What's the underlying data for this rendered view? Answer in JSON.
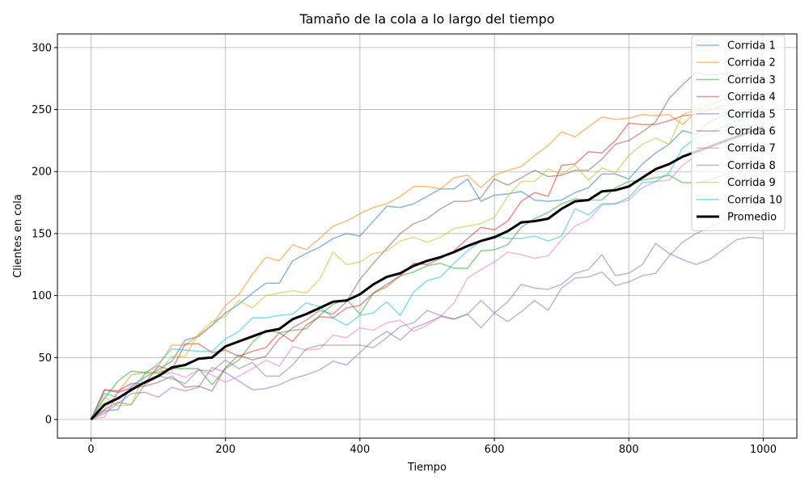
{
  "chart_data": {
    "type": "line",
    "title": "Tamaño de la cola a lo largo del tiempo",
    "xlabel": "Tiempo",
    "ylabel": "Clientes en cola",
    "xlim": [
      -50,
      1050
    ],
    "ylim": [
      -15,
      311
    ],
    "x_ticks": [
      0,
      200,
      400,
      600,
      800,
      1000
    ],
    "x_tick_labels": [
      "0",
      "200",
      "400",
      "600",
      "800",
      "1000"
    ],
    "y_ticks": [
      0,
      50,
      100,
      150,
      200,
      250,
      300
    ],
    "y_tick_labels": [
      "0",
      "50",
      "100",
      "150",
      "200",
      "250",
      "300"
    ],
    "grid": true,
    "legend_position": "top-right",
    "x": [
      0,
      20,
      40,
      60,
      80,
      100,
      120,
      140,
      160,
      180,
      200,
      220,
      240,
      260,
      280,
      300,
      320,
      340,
      360,
      380,
      400,
      420,
      440,
      460,
      480,
      500,
      520,
      540,
      560,
      580,
      600,
      620,
      640,
      660,
      680,
      700,
      720,
      740,
      760,
      780,
      800,
      820,
      840,
      860,
      880,
      900,
      920,
      940,
      960,
      980,
      1000
    ],
    "series": [
      {
        "name": "Corrida 1",
        "color": "#1f77b4",
        "values": [
          0,
          7,
          8,
          27,
          34,
          40,
          47,
          64,
          67,
          76,
          86,
          93,
          102,
          110,
          110,
          128,
          134,
          139,
          146,
          150,
          148,
          160,
          172,
          171,
          174,
          180,
          186,
          186,
          194,
          176,
          181,
          182,
          184,
          177,
          176,
          177,
          183,
          187,
          198,
          198,
          194,
          206,
          215,
          222,
          233,
          230,
          240,
          245,
          248,
          250,
          252
        ]
      },
      {
        "name": "Corrida 2",
        "color": "#ff7f0e",
        "values": [
          0,
          8,
          22,
          36,
          38,
          43,
          60,
          60,
          68,
          76,
          92,
          101,
          117,
          131,
          128,
          141,
          137,
          146,
          156,
          160,
          166,
          171,
          174,
          180,
          188,
          188,
          186,
          195,
          197,
          187,
          197,
          201,
          204,
          213,
          221,
          232,
          228,
          236,
          244,
          242,
          243,
          246,
          245,
          246,
          238,
          248,
          253,
          258,
          262,
          266,
          270
        ]
      },
      {
        "name": "Corrida 3",
        "color": "#2ca02c",
        "values": [
          0,
          17,
          31,
          39,
          38,
          38,
          41,
          41,
          41,
          28,
          41,
          48,
          62,
          72,
          70,
          72,
          73,
          84,
          93,
          97,
          85,
          102,
          107,
          116,
          119,
          124,
          126,
          122,
          122,
          136,
          137,
          141,
          155,
          162,
          167,
          174,
          178,
          177,
          177,
          187,
          192,
          193,
          195,
          197,
          191,
          191,
          193,
          197,
          200,
          204,
          208
        ]
      },
      {
        "name": "Corrida 4",
        "color": "#d62728",
        "values": [
          0,
          24,
          23,
          29,
          29,
          43,
          40,
          61,
          61,
          54,
          56,
          51,
          55,
          58,
          70,
          63,
          76,
          83,
          82,
          90,
          92,
          102,
          109,
          116,
          126,
          125,
          130,
          136,
          146,
          155,
          153,
          160,
          176,
          183,
          180,
          205,
          206,
          216,
          215,
          225,
          239,
          238,
          238,
          241,
          245,
          246,
          250,
          253,
          255,
          258,
          260
        ]
      },
      {
        "name": "Corrida 5",
        "color": "#9467bd",
        "values": [
          0,
          5,
          13,
          21,
          22,
          18,
          26,
          23,
          26,
          42,
          38,
          31,
          24,
          25,
          28,
          33,
          36,
          40,
          47,
          44,
          54,
          64,
          71,
          64,
          74,
          78,
          83,
          81,
          85,
          96,
          86,
          95,
          109,
          106,
          105,
          109,
          118,
          121,
          133,
          116,
          118,
          125,
          142,
          134,
          129,
          125,
          129,
          137,
          145,
          147,
          146
        ]
      },
      {
        "name": "Corrida 6",
        "color": "#8c564b",
        "values": [
          0,
          24,
          22,
          25,
          27,
          30,
          35,
          26,
          27,
          23,
          42,
          52,
          48,
          51,
          65,
          74,
          80,
          88,
          85,
          95,
          113,
          126,
          138,
          150,
          158,
          162,
          170,
          176,
          176,
          179,
          194,
          189,
          195,
          201,
          196,
          197,
          201,
          201,
          210,
          222,
          225,
          232,
          240,
          259,
          270,
          280,
          278,
          279,
          278,
          280,
          282
        ]
      },
      {
        "name": "Corrida 7",
        "color": "#e377c2",
        "values": [
          0,
          2,
          22,
          26,
          30,
          36,
          38,
          34,
          40,
          36,
          30,
          35,
          41,
          48,
          43,
          59,
          56,
          57,
          68,
          66,
          74,
          72,
          78,
          80,
          71,
          76,
          83,
          94,
          114,
          121,
          127,
          135,
          133,
          130,
          132,
          145,
          156,
          161,
          173,
          174,
          177,
          187,
          192,
          193,
          205,
          213,
          220,
          226,
          231,
          236,
          240
        ]
      },
      {
        "name": "Corrida 8",
        "color": "#7f7f7f",
        "values": [
          0,
          8,
          14,
          12,
          28,
          35,
          33,
          29,
          40,
          39,
          48,
          41,
          46,
          35,
          35,
          44,
          57,
          60,
          60,
          60,
          60,
          58,
          66,
          75,
          78,
          88,
          84,
          81,
          85,
          74,
          86,
          79,
          87,
          96,
          88,
          106,
          114,
          115,
          119,
          108,
          111,
          116,
          118,
          132,
          143,
          150,
          155,
          160,
          166,
          171,
          176
        ]
      },
      {
        "name": "Corrida 9",
        "color": "#bcbd22",
        "values": [
          0,
          18,
          11,
          12,
          37,
          37,
          51,
          51,
          69,
          79,
          83,
          96,
          90,
          100,
          102,
          104,
          102,
          113,
          135,
          125,
          127,
          134,
          136,
          144,
          147,
          143,
          147,
          154,
          156,
          158,
          163,
          180,
          192,
          192,
          202,
          198,
          205,
          193,
          203,
          199,
          213,
          222,
          227,
          222,
          246,
          250,
          255,
          258,
          262,
          265,
          268
        ]
      },
      {
        "name": "Corrida 10",
        "color": "#17becf",
        "values": [
          0,
          21,
          18,
          23,
          37,
          45,
          57,
          56,
          55,
          55,
          65,
          71,
          82,
          82,
          84,
          85,
          94,
          91,
          82,
          76,
          84,
          86,
          95,
          84,
          103,
          112,
          115,
          126,
          136,
          144,
          148,
          146,
          146,
          148,
          144,
          148,
          170,
          165,
          174,
          174,
          179,
          191,
          192,
          199,
          219,
          227,
          232,
          236,
          240,
          244,
          248
        ]
      },
      {
        "name": "Promedio",
        "color": "#000000",
        "values": [
          0,
          12,
          17,
          24,
          30,
          35,
          42,
          44,
          49,
          50,
          59,
          63,
          67,
          71,
          73,
          81,
          85,
          90,
          95,
          96,
          101,
          109,
          115,
          118,
          124,
          128,
          131,
          135,
          140,
          144,
          147,
          152,
          159,
          160,
          162,
          170,
          176,
          177,
          184,
          185,
          188,
          195,
          202,
          206,
          212,
          216,
          220,
          224,
          228,
          232,
          236
        ]
      }
    ]
  }
}
